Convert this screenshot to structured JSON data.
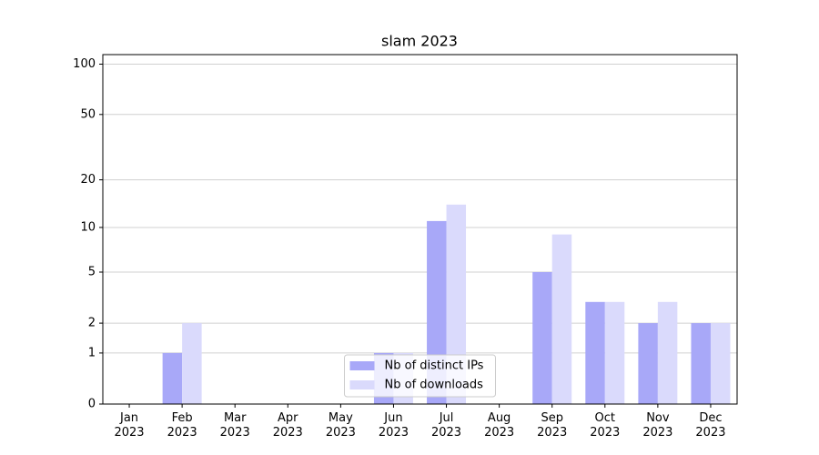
{
  "chart_data": {
    "type": "bar",
    "title": "slam 2023",
    "categories": [
      "Jan\n2023",
      "Feb\n2023",
      "Mar\n2023",
      "Apr\n2023",
      "May\n2023",
      "Jun\n2023",
      "Jul\n2023",
      "Aug\n2023",
      "Sep\n2023",
      "Oct\n2023",
      "Nov\n2023",
      "Dec\n2023"
    ],
    "series": [
      {
        "name": "Nb of distinct IPs",
        "color": "#a8a8f8",
        "values": [
          0,
          1,
          0,
          0,
          0,
          1,
          11,
          0,
          5,
          3,
          2,
          2
        ]
      },
      {
        "name": "Nb of downloads",
        "color": "#dadafc",
        "values": [
          0,
          2,
          0,
          0,
          0,
          1,
          14,
          0,
          9,
          3,
          3,
          2
        ]
      }
    ],
    "yscale": "log1p",
    "ylim": [
      0,
      114
    ],
    "yticks": [
      0,
      1,
      2,
      5,
      10,
      20,
      50,
      100
    ],
    "grid": true,
    "legend": "lower center"
  }
}
